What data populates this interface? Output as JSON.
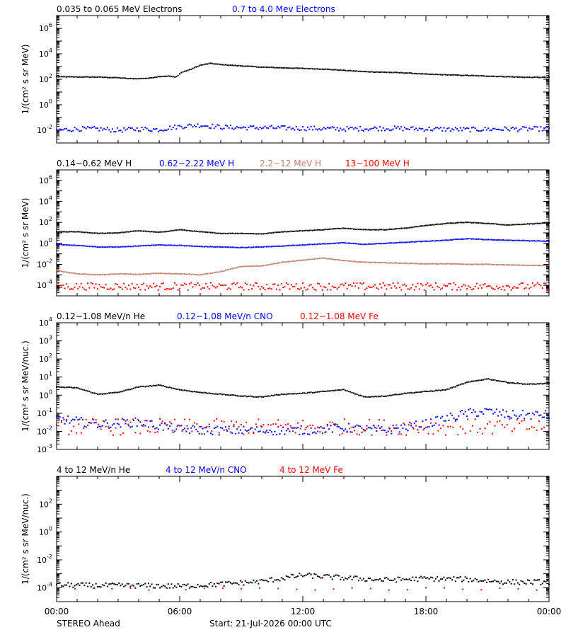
{
  "chart_data": [
    {
      "type": "scatter",
      "id": "electrons",
      "ylabel": "1/(cm² s sr MeV)",
      "yscale": "log",
      "ylim_exp": [
        -3,
        7
      ],
      "yticks": [
        {
          "exp": 6,
          "label": "6"
        },
        {
          "exp": 4,
          "label": "4"
        },
        {
          "exp": 2,
          "label": "2"
        },
        {
          "exp": 0,
          "label": "0"
        },
        {
          "exp": -2,
          "label": "-2"
        }
      ],
      "series": [
        {
          "name": "0.035 to 0.065 MeV Electrons",
          "color": "#000000",
          "points": [
            [
              0,
              2.2
            ],
            [
              1,
              2.18
            ],
            [
              2,
              2.17
            ],
            [
              3,
              2.12
            ],
            [
              3.5,
              2.05
            ],
            [
              4,
              2.05
            ],
            [
              4.5,
              2.08
            ],
            [
              5,
              2.22
            ],
            [
              5.5,
              2.25
            ],
            [
              5.8,
              2.15
            ],
            [
              6.1,
              2.55
            ],
            [
              6.5,
              2.75
            ],
            [
              7,
              3.1
            ],
            [
              7.5,
              3.25
            ],
            [
              8,
              3.15
            ],
            [
              9,
              3.05
            ],
            [
              10,
              2.95
            ],
            [
              11,
              2.9
            ],
            [
              12,
              2.85
            ],
            [
              13,
              2.8
            ],
            [
              14,
              2.7
            ],
            [
              15,
              2.6
            ],
            [
              16,
              2.55
            ],
            [
              17,
              2.5
            ],
            [
              18,
              2.4
            ],
            [
              19,
              2.35
            ],
            [
              20,
              2.3
            ],
            [
              21,
              2.25
            ],
            [
              22,
              2.2
            ],
            [
              23,
              2.15
            ],
            [
              24,
              2.15
            ]
          ]
        },
        {
          "name": "0.7 to 4.0 Mev Electrons",
          "color": "#0000ff",
          "points": [
            [
              0,
              -2.0
            ],
            [
              1,
              -1.9
            ],
            [
              2,
              -1.9
            ],
            [
              3,
              -2.0
            ],
            [
              4,
              -1.9
            ],
            [
              5,
              -1.95
            ],
            [
              6,
              -1.7
            ],
            [
              7,
              -1.6
            ],
            [
              8,
              -1.75
            ],
            [
              9,
              -1.8
            ],
            [
              10,
              -1.8
            ],
            [
              12,
              -1.85
            ],
            [
              14,
              -1.9
            ],
            [
              16,
              -1.85
            ],
            [
              18,
              -1.9
            ],
            [
              20,
              -1.95
            ],
            [
              22,
              -1.9
            ],
            [
              24,
              -1.9
            ]
          ],
          "noise": 0.18
        }
      ]
    },
    {
      "type": "scatter",
      "id": "protons",
      "ylabel": "1/(cm² s sr MeV)",
      "yscale": "log",
      "ylim_exp": [
        -5,
        7
      ],
      "yticks": [
        {
          "exp": 6,
          "label": "6"
        },
        {
          "exp": 4,
          "label": "4"
        },
        {
          "exp": 2,
          "label": "2"
        },
        {
          "exp": 0,
          "label": "0"
        },
        {
          "exp": -2,
          "label": "-2"
        },
        {
          "exp": -4,
          "label": "-4"
        }
      ],
      "series": [
        {
          "name": "0.14−0.62 MeV H",
          "color": "#000000",
          "points": [
            [
              0,
              1.1
            ],
            [
              1,
              1.1
            ],
            [
              2,
              0.95
            ],
            [
              3,
              1.0
            ],
            [
              4,
              1.2
            ],
            [
              5,
              1.05
            ],
            [
              6,
              1.3
            ],
            [
              7,
              1.1
            ],
            [
              8,
              0.95
            ],
            [
              9,
              0.95
            ],
            [
              10,
              0.9
            ],
            [
              11,
              1.1
            ],
            [
              12,
              1.2
            ],
            [
              13,
              1.3
            ],
            [
              14,
              1.45
            ],
            [
              15,
              1.3
            ],
            [
              16,
              1.3
            ],
            [
              17,
              1.45
            ],
            [
              18,
              1.7
            ],
            [
              19,
              1.9
            ],
            [
              20,
              2.0
            ],
            [
              21,
              1.9
            ],
            [
              22,
              1.75
            ],
            [
              23,
              1.85
            ],
            [
              24,
              1.95
            ]
          ]
        },
        {
          "name": "0.62−2.22 MeV H",
          "color": "#0000ff",
          "points": [
            [
              0,
              -0.1
            ],
            [
              1,
              -0.2
            ],
            [
              2,
              -0.35
            ],
            [
              3,
              -0.35
            ],
            [
              4,
              -0.25
            ],
            [
              5,
              -0.15
            ],
            [
              6,
              -0.2
            ],
            [
              7,
              -0.3
            ],
            [
              8,
              -0.35
            ],
            [
              9,
              -0.4
            ],
            [
              10,
              -0.35
            ],
            [
              11,
              -0.25
            ],
            [
              12,
              -0.15
            ],
            [
              13,
              -0.05
            ],
            [
              14,
              0.05
            ],
            [
              15,
              -0.1
            ],
            [
              16,
              0.0
            ],
            [
              17,
              0.1
            ],
            [
              18,
              0.2
            ],
            [
              19,
              0.3
            ],
            [
              20,
              0.45
            ],
            [
              21,
              0.35
            ],
            [
              22,
              0.3
            ],
            [
              23,
              0.25
            ],
            [
              24,
              0.2
            ]
          ]
        },
        {
          "name": "2.2−12 MeV H",
          "color": "#c0806a",
          "points": [
            [
              0,
              -2.6
            ],
            [
              1,
              -2.9
            ],
            [
              2,
              -3.0
            ],
            [
              3,
              -2.9
            ],
            [
              4,
              -2.95
            ],
            [
              5,
              -2.85
            ],
            [
              6,
              -2.9
            ],
            [
              7,
              -3.0
            ],
            [
              8,
              -2.7
            ],
            [
              9,
              -2.2
            ],
            [
              10,
              -2.15
            ],
            [
              11,
              -1.8
            ],
            [
              12,
              -1.6
            ],
            [
              13,
              -1.4
            ],
            [
              14,
              -1.65
            ],
            [
              15,
              -1.8
            ],
            [
              16,
              -1.85
            ],
            [
              17,
              -1.9
            ],
            [
              18,
              -1.95
            ],
            [
              19,
              -1.95
            ],
            [
              20,
              -2.0
            ],
            [
              21,
              -2.0
            ],
            [
              22,
              -2.05
            ],
            [
              23,
              -2.1
            ],
            [
              24,
              -2.1
            ]
          ]
        },
        {
          "name": "13−100 MeV H",
          "color": "#ff0000",
          "points": [
            [
              0,
              -4.1
            ],
            [
              4,
              -4.1
            ],
            [
              8,
              -4.1
            ],
            [
              12,
              -4.1
            ],
            [
              16,
              -4.1
            ],
            [
              20,
              -4.1
            ],
            [
              24,
              -4.1
            ]
          ],
          "noise": 0.35
        }
      ]
    },
    {
      "type": "scatter",
      "id": "heavy-low",
      "ylabel": "1/(cm² s sr MeV/nuc.)",
      "yscale": "log",
      "ylim_exp": [
        -3,
        4
      ],
      "yticks": [
        {
          "exp": 4,
          "label": "4"
        },
        {
          "exp": 3,
          "label": "3"
        },
        {
          "exp": 2,
          "label": "2"
        },
        {
          "exp": 1,
          "label": "1"
        },
        {
          "exp": 0,
          "label": "0"
        },
        {
          "exp": -1,
          "label": "-1"
        },
        {
          "exp": -2,
          "label": "-2"
        },
        {
          "exp": -3,
          "label": "-3"
        }
      ],
      "series": [
        {
          "name": "0.12−1.08 MeV/n He",
          "color": "#000000",
          "points": [
            [
              0,
              0.45
            ],
            [
              1,
              0.4
            ],
            [
              2,
              0.05
            ],
            [
              3,
              0.15
            ],
            [
              4,
              0.45
            ],
            [
              5,
              0.55
            ],
            [
              6,
              0.3
            ],
            [
              7,
              0.15
            ],
            [
              8,
              0.05
            ],
            [
              9,
              -0.05
            ],
            [
              10,
              -0.1
            ],
            [
              11,
              0.05
            ],
            [
              12,
              0.1
            ],
            [
              13,
              0.2
            ],
            [
              14,
              0.3
            ],
            [
              15,
              -0.1
            ],
            [
              16,
              -0.05
            ],
            [
              17,
              0.1
            ],
            [
              18,
              0.2
            ],
            [
              19,
              0.3
            ],
            [
              20,
              0.7
            ],
            [
              21,
              0.9
            ],
            [
              22,
              0.7
            ],
            [
              23,
              0.6
            ],
            [
              24,
              0.65
            ]
          ]
        },
        {
          "name": "0.12−1.08 MeV/n CNO",
          "color": "#0000ff",
          "points": [
            [
              0,
              -1.3
            ],
            [
              2,
              -1.6
            ],
            [
              4,
              -1.5
            ],
            [
              6,
              -1.9
            ],
            [
              8,
              -1.95
            ],
            [
              10,
              -1.95
            ],
            [
              12,
              -1.95
            ],
            [
              14,
              -1.8
            ],
            [
              16,
              -1.95
            ],
            [
              18,
              -1.6
            ],
            [
              19,
              -1.3
            ],
            [
              20,
              -1.0
            ],
            [
              21,
              -0.9
            ],
            [
              22,
              -1.1
            ],
            [
              24,
              -1.1
            ]
          ],
          "noise": 0.25
        }
      ]
    },
    {
      "type": "scatter",
      "id": "heavy-high",
      "ylabel": "1/(cm² s sr MeV/nuc.)",
      "yscale": "log",
      "ylim_exp": [
        -5,
        4
      ],
      "yticks": [
        {
          "exp": 2,
          "label": "2"
        },
        {
          "exp": 0,
          "label": "0"
        },
        {
          "exp": -2,
          "label": "-2"
        },
        {
          "exp": -4,
          "label": "-4"
        }
      ],
      "series": [
        {
          "name": "4 to 12 MeV/n He",
          "color": "#000000",
          "points": [
            [
              0,
              -3.8
            ],
            [
              2,
              -3.85
            ],
            [
              4,
              -3.85
            ],
            [
              6,
              -3.9
            ],
            [
              8,
              -3.75
            ],
            [
              10,
              -3.55
            ],
            [
              12,
              -3.1
            ],
            [
              14,
              -3.3
            ],
            [
              16,
              -3.45
            ],
            [
              18,
              -3.35
            ],
            [
              20,
              -3.4
            ],
            [
              22,
              -3.6
            ],
            [
              24,
              -3.6
            ]
          ],
          "noise": 0.18
        }
      ]
    }
  ],
  "panels": [
    {
      "legends": [
        {
          "text": "0.035 to 0.065 MeV Electrons",
          "color": "#000000"
        },
        {
          "text": "0.7 to 4.0 Mev Electrons",
          "color": "#0000ff"
        }
      ]
    },
    {
      "legends": [
        {
          "text": "0.14−0.62 MeV H",
          "color": "#000000"
        },
        {
          "text": "0.62−2.22 MeV H",
          "color": "#0000ff"
        },
        {
          "text": "2.2−12 MeV H",
          "color": "#c0806a"
        },
        {
          "text": "13−100 MeV H",
          "color": "#ff0000"
        }
      ]
    },
    {
      "legends": [
        {
          "text": "0.12−1.08 MeV/n He",
          "color": "#000000"
        },
        {
          "text": "0.12−1.08 MeV/n CNO",
          "color": "#0000ff"
        },
        {
          "text": "0.12−1.08 MeV Fe",
          "color": "#ff0000"
        }
      ]
    },
    {
      "legends": [
        {
          "text": "4 to 12 MeV/n He",
          "color": "#000000"
        },
        {
          "text": "4 to 12 MeV/n CNO",
          "color": "#0000ff"
        },
        {
          "text": "4 to 12 MeV Fe",
          "color": "#ff0000"
        }
      ]
    }
  ],
  "x_axis": {
    "ticks": [
      "00:00",
      "06:00",
      "12:00",
      "18:00",
      "00:00"
    ],
    "range_hours": [
      0,
      24
    ]
  },
  "footer": {
    "spacecraft": "STEREO Ahead",
    "start": "Start: 21-Jul-2026 00:00 UTC"
  },
  "colors": {
    "black": "#000000",
    "blue": "#0000ff",
    "brown": "#c0806a",
    "red": "#ff0000"
  }
}
